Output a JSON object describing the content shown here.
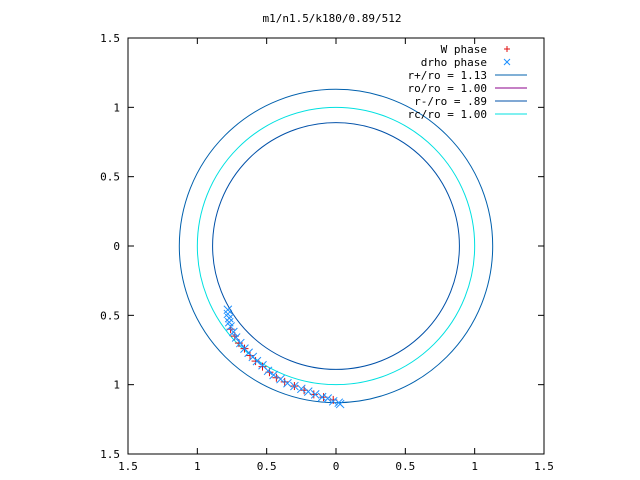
{
  "chart_data": {
    "type": "scatter",
    "title": "m1/n1.5/k180/0.89/512",
    "xlabel": "",
    "ylabel": "",
    "xlim": [
      -1.5,
      1.5
    ],
    "ylim": [
      -1.5,
      1.5
    ],
    "grid": false,
    "legend_position": "top-right",
    "x_ticks": [
      {
        "value": -1.5,
        "label": "1.5"
      },
      {
        "value": -1.0,
        "label": "1"
      },
      {
        "value": -0.5,
        "label": "0.5"
      },
      {
        "value": 0.0,
        "label": "0"
      },
      {
        "value": 0.5,
        "label": "0.5"
      },
      {
        "value": 1.0,
        "label": "1"
      },
      {
        "value": 1.5,
        "label": "1.5"
      }
    ],
    "y_ticks": [
      {
        "value": 1.5,
        "label": "1.5"
      },
      {
        "value": 1.0,
        "label": "1"
      },
      {
        "value": 0.5,
        "label": "0.5"
      },
      {
        "value": 0.0,
        "label": "0"
      },
      {
        "value": -0.5,
        "label": "0.5"
      },
      {
        "value": -1.0,
        "label": "1"
      },
      {
        "value": -1.5,
        "label": "1.5"
      }
    ],
    "circles": [
      {
        "name": "r+/ro = 1.13",
        "radius": 1.13,
        "color": "#0060ad"
      },
      {
        "name": "ro/ro = 1.00",
        "radius": 1.0,
        "color": "#8b008b",
        "hidden": true
      },
      {
        "name": "r-/ro = .89",
        "radius": 0.89,
        "color": "#0050a8"
      },
      {
        "name": "rc/ro = 1.00",
        "radius": 1.0,
        "color": "#00e0e0"
      }
    ],
    "series": [
      {
        "name": "W phase",
        "marker": "+",
        "color": "#e01010",
        "points": [
          [
            -0.76,
            -0.6
          ],
          [
            -0.73,
            -0.65
          ],
          [
            -0.7,
            -0.7
          ],
          [
            -0.66,
            -0.74
          ],
          [
            -0.62,
            -0.79
          ],
          [
            -0.58,
            -0.83
          ],
          [
            -0.53,
            -0.87
          ],
          [
            -0.48,
            -0.91
          ],
          [
            -0.43,
            -0.95
          ],
          [
            -0.37,
            -0.98
          ],
          [
            -0.3,
            -1.01
          ],
          [
            -0.23,
            -1.04
          ],
          [
            -0.16,
            -1.07
          ],
          [
            -0.09,
            -1.09
          ],
          [
            -0.02,
            -1.11
          ]
        ]
      },
      {
        "name": "drho phase",
        "marker": "x",
        "color": "#1e90ff",
        "points": [
          [
            -0.78,
            -0.46
          ],
          [
            -0.78,
            -0.49
          ],
          [
            -0.77,
            -0.52
          ],
          [
            -0.77,
            -0.55
          ],
          [
            -0.76,
            -0.58
          ],
          [
            -0.74,
            -0.62
          ],
          [
            -0.72,
            -0.66
          ],
          [
            -0.69,
            -0.7
          ],
          [
            -0.66,
            -0.74
          ],
          [
            -0.63,
            -0.77
          ],
          [
            -0.6,
            -0.8
          ],
          [
            -0.57,
            -0.83
          ],
          [
            -0.53,
            -0.86
          ],
          [
            -0.49,
            -0.9
          ],
          [
            -0.45,
            -0.93
          ],
          [
            -0.4,
            -0.96
          ],
          [
            -0.35,
            -0.99
          ],
          [
            -0.3,
            -1.01
          ],
          [
            -0.25,
            -1.03
          ],
          [
            -0.2,
            -1.05
          ],
          [
            -0.15,
            -1.07
          ],
          [
            -0.1,
            -1.09
          ],
          [
            -0.06,
            -1.1
          ],
          [
            -0.02,
            -1.12
          ],
          [
            0.02,
            -1.13
          ],
          [
            0.03,
            -1.14
          ]
        ]
      }
    ]
  }
}
